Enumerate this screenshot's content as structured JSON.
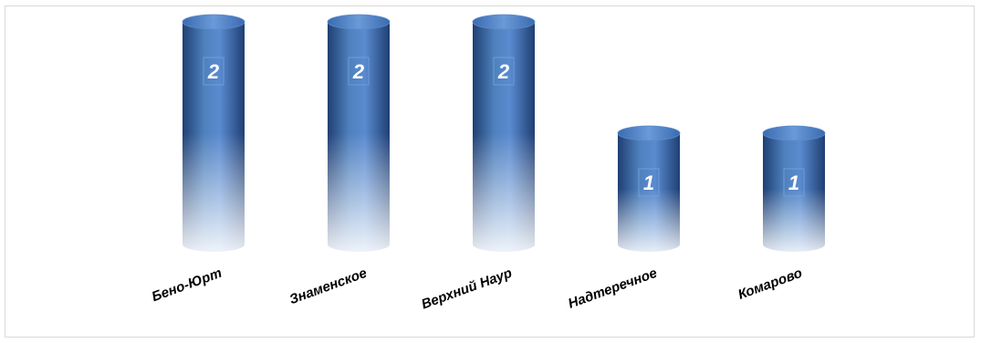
{
  "chart_data": {
    "type": "bar",
    "style": "3d-cylinder",
    "categories": [
      "Бено-Юрт",
      "Знаменское",
      "Верхний Наур",
      "Надтеречное",
      "Комарово"
    ],
    "values": [
      2,
      2,
      2,
      1,
      1
    ],
    "data_labels": [
      "2",
      "2",
      "2",
      "1",
      "1"
    ],
    "ylim": [
      0,
      2
    ],
    "grid": false,
    "legend": "none",
    "colors": {
      "bar_top": "#4f81bd",
      "bar_body": "#3a6aae",
      "bar_dark": "#1f3f73",
      "label_box": "#5b8ccc"
    }
  }
}
